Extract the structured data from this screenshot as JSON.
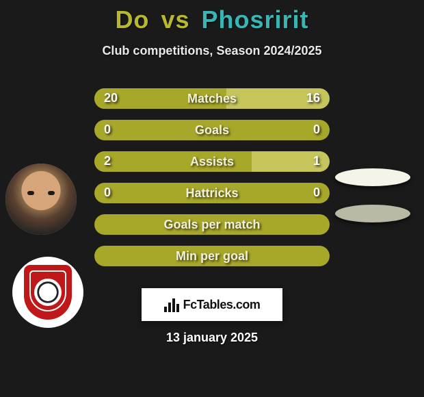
{
  "header": {
    "player1": "Do",
    "vs": "vs",
    "player2": "Phosririt",
    "player1_color": "#b8b82f",
    "player2_color": "#38b6b6",
    "subtitle": "Club competitions, Season 2024/2025"
  },
  "stats": {
    "bar_left_color": "#a7a72a",
    "bar_right_color": "#c5c55c",
    "bar_full_color": "#a7a72a",
    "rows": [
      {
        "label": "Matches",
        "left": "20",
        "right": "16",
        "split": 0.56
      },
      {
        "label": "Goals",
        "left": "0",
        "right": "0",
        "split": 0
      },
      {
        "label": "Assists",
        "left": "2",
        "right": "1",
        "split": 0.67
      },
      {
        "label": "Hattricks",
        "left": "0",
        "right": "0",
        "split": 0
      },
      {
        "label": "Goals per match",
        "left": "",
        "right": "",
        "split": 0
      },
      {
        "label": "Min per goal",
        "left": "",
        "right": "",
        "split": 0
      }
    ]
  },
  "branding": {
    "text": "FcTables.com"
  },
  "footer": {
    "date": "13 january 2025"
  },
  "blobs": {
    "b1_color": "#f4f4e8",
    "b2_color": "#b9b9a5"
  }
}
